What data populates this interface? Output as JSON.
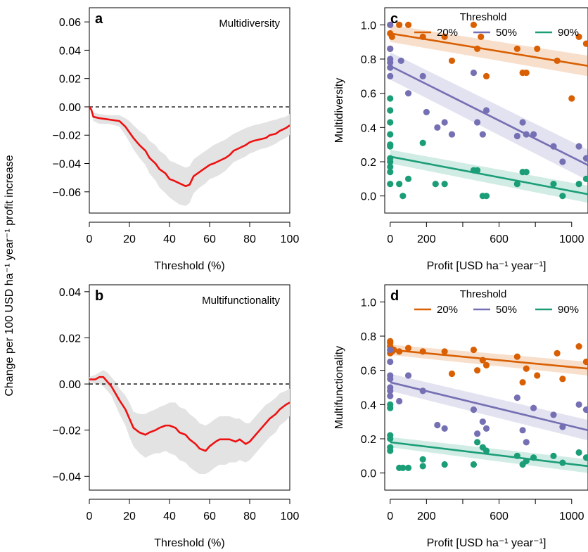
{
  "figure": {
    "shared_ylabel_left": "Change per 100 USD ha⁻¹ year⁻¹ profit increase"
  },
  "colors": {
    "line_red": "#ee1111",
    "band_gray": "#e3e3e3",
    "orange": "#d95f02",
    "purple": "#7570b3",
    "green": "#1b9e77"
  },
  "chart_data": [
    {
      "panel": "a",
      "type": "line",
      "title": "Multidiversity",
      "xlabel": "Threshold (%)",
      "ylabel": "",
      "xlim": [
        0,
        100
      ],
      "ylim": [
        -0.075,
        0.07
      ],
      "xticks": [
        0,
        20,
        40,
        60,
        80,
        100
      ],
      "yticks": [
        -0.06,
        -0.04,
        -0.02,
        0.0,
        0.02,
        0.04,
        0.06
      ],
      "ytick_labels": [
        "−0.06",
        "−0.04",
        "−0.02",
        "0.00",
        "0.02",
        "0.04",
        "0.06"
      ],
      "reference_line": 0,
      "series": [
        {
          "x": [
            0,
            1,
            2,
            5,
            10,
            15,
            18,
            20,
            22,
            25,
            28,
            30,
            33,
            35,
            38,
            40,
            42,
            45,
            48,
            50,
            52,
            55,
            58,
            60,
            62,
            65,
            68,
            70,
            72,
            75,
            78,
            80,
            82,
            85,
            88,
            90,
            93,
            95,
            98,
            100
          ],
          "y": [
            0.0,
            -0.002,
            -0.007,
            -0.008,
            -0.009,
            -0.01,
            -0.014,
            -0.018,
            -0.022,
            -0.027,
            -0.031,
            -0.036,
            -0.04,
            -0.044,
            -0.047,
            -0.051,
            -0.052,
            -0.054,
            -0.056,
            -0.055,
            -0.049,
            -0.046,
            -0.043,
            -0.041,
            -0.04,
            -0.038,
            -0.036,
            -0.034,
            -0.031,
            -0.029,
            -0.027,
            -0.025,
            -0.024,
            -0.023,
            -0.022,
            -0.02,
            -0.019,
            -0.017,
            -0.015,
            -0.013
          ],
          "lower": [
            0.0,
            -0.003,
            -0.01,
            -0.012,
            -0.012,
            -0.014,
            -0.02,
            -0.025,
            -0.03,
            -0.036,
            -0.041,
            -0.047,
            -0.052,
            -0.057,
            -0.061,
            -0.064,
            -0.066,
            -0.069,
            -0.07,
            -0.068,
            -0.061,
            -0.057,
            -0.054,
            -0.051,
            -0.05,
            -0.048,
            -0.045,
            -0.042,
            -0.039,
            -0.037,
            -0.035,
            -0.033,
            -0.032,
            -0.03,
            -0.029,
            -0.028,
            -0.026,
            -0.024,
            -0.022,
            -0.02
          ],
          "upper": [
            0.0,
            -0.001,
            -0.004,
            -0.005,
            -0.006,
            -0.006,
            -0.008,
            -0.01,
            -0.013,
            -0.017,
            -0.02,
            -0.024,
            -0.027,
            -0.031,
            -0.034,
            -0.038,
            -0.039,
            -0.041,
            -0.043,
            -0.042,
            -0.037,
            -0.034,
            -0.031,
            -0.029,
            -0.027,
            -0.025,
            -0.023,
            -0.021,
            -0.019,
            -0.017,
            -0.015,
            -0.014,
            -0.013,
            -0.012,
            -0.011,
            -0.01,
            -0.009,
            -0.008,
            -0.007,
            -0.005
          ]
        }
      ]
    },
    {
      "panel": "b",
      "type": "line",
      "title": "Multifunctionality",
      "xlabel": "Threshold (%)",
      "ylabel": "",
      "xlim": [
        0,
        100
      ],
      "ylim": [
        -0.046,
        0.043
      ],
      "xticks": [
        0,
        20,
        40,
        60,
        80,
        100
      ],
      "yticks": [
        -0.04,
        -0.02,
        0.0,
        0.02,
        0.04
      ],
      "ytick_labels": [
        "−0.04",
        "−0.02",
        "0.00",
        "0.02",
        "0.04"
      ],
      "reference_line": 0,
      "series": [
        {
          "x": [
            0,
            3,
            5,
            7,
            9,
            11,
            13,
            15,
            18,
            20,
            22,
            25,
            28,
            30,
            33,
            35,
            38,
            40,
            43,
            45,
            48,
            50,
            53,
            55,
            58,
            60,
            63,
            65,
            68,
            70,
            73,
            75,
            78,
            80,
            83,
            85,
            88,
            90,
            93,
            95,
            98,
            100
          ],
          "y": [
            0.002,
            0.002,
            0.003,
            0.003,
            0.001,
            -0.001,
            -0.004,
            -0.007,
            -0.011,
            -0.015,
            -0.019,
            -0.021,
            -0.022,
            -0.021,
            -0.02,
            -0.019,
            -0.018,
            -0.018,
            -0.019,
            -0.021,
            -0.022,
            -0.024,
            -0.026,
            -0.028,
            -0.029,
            -0.027,
            -0.025,
            -0.024,
            -0.024,
            -0.024,
            -0.025,
            -0.024,
            -0.026,
            -0.025,
            -0.022,
            -0.02,
            -0.017,
            -0.015,
            -0.013,
            -0.011,
            -0.009,
            -0.008
          ],
          "lower": [
            0.001,
            0.0,
            0.0,
            -0.001,
            -0.003,
            -0.005,
            -0.009,
            -0.013,
            -0.018,
            -0.023,
            -0.027,
            -0.03,
            -0.032,
            -0.031,
            -0.03,
            -0.03,
            -0.029,
            -0.03,
            -0.031,
            -0.033,
            -0.034,
            -0.036,
            -0.038,
            -0.039,
            -0.039,
            -0.038,
            -0.036,
            -0.035,
            -0.035,
            -0.034,
            -0.034,
            -0.033,
            -0.034,
            -0.033,
            -0.03,
            -0.028,
            -0.025,
            -0.023,
            -0.021,
            -0.018,
            -0.016,
            -0.014
          ],
          "upper": [
            0.003,
            0.004,
            0.005,
            0.006,
            0.005,
            0.003,
            0.001,
            -0.002,
            -0.005,
            -0.008,
            -0.012,
            -0.013,
            -0.013,
            -0.012,
            -0.011,
            -0.01,
            -0.009,
            -0.008,
            -0.008,
            -0.01,
            -0.011,
            -0.013,
            -0.015,
            -0.017,
            -0.018,
            -0.017,
            -0.015,
            -0.014,
            -0.014,
            -0.014,
            -0.015,
            -0.015,
            -0.017,
            -0.017,
            -0.014,
            -0.012,
            -0.009,
            -0.008,
            -0.006,
            -0.004,
            -0.003,
            -0.002
          ]
        }
      ]
    },
    {
      "panel": "c",
      "type": "scatter",
      "title": "",
      "xlabel": "Profit [USD ha⁻¹ year⁻¹]",
      "ylabel": "Multidiversity",
      "xlim": [
        -30,
        1090
      ],
      "ylim": [
        -0.1,
        1.1
      ],
      "xticks": [
        0,
        200,
        400,
        600,
        800,
        1000
      ],
      "xtick_labels": [
        "0",
        "200",
        "",
        "600",
        "",
        "1000"
      ],
      "yticks": [
        0.0,
        0.2,
        0.4,
        0.6,
        0.8,
        1.0
      ],
      "ytick_labels": [
        "0.0",
        "0.2",
        "0.4",
        "0.6",
        "0.8",
        "1.0"
      ],
      "legend_title": "Threshold",
      "series": [
        {
          "name": "20%",
          "color": "#d95f02",
          "x": [
            0,
            0,
            0,
            10,
            50,
            100,
            180,
            300,
            340,
            460,
            480,
            500,
            530,
            700,
            730,
            750,
            810,
            920,
            1000,
            1040,
            1080
          ],
          "y": [
            1.0,
            0.95,
            0.86,
            0.93,
            1.0,
            1.0,
            0.93,
            0.93,
            0.79,
            1.0,
            0.86,
            0.93,
            0.7,
            0.86,
            0.72,
            0.72,
            0.86,
            0.79,
            0.57,
            0.93,
            0.89
          ],
          "fit": [
            0.95,
            0.76
          ],
          "ci_width": [
            0.05,
            0.06
          ]
        },
        {
          "name": "50%",
          "color": "#7570b3",
          "x": [
            0,
            0,
            0,
            0,
            0,
            0,
            60,
            100,
            180,
            200,
            260,
            300,
            340,
            460,
            480,
            510,
            530,
            700,
            730,
            750,
            790,
            900,
            950,
            1040,
            1080
          ],
          "y": [
            1.0,
            0.86,
            0.78,
            0.75,
            0.7,
            0.8,
            0.79,
            0.6,
            0.7,
            0.49,
            0.4,
            0.43,
            0.36,
            0.72,
            0.43,
            0.36,
            0.5,
            0.35,
            0.43,
            0.36,
            0.36,
            0.29,
            0.2,
            0.29,
            0.22
          ],
          "fit": [
            0.76,
            0.18
          ],
          "ci_width": [
            0.08,
            0.09
          ]
        },
        {
          "name": "90%",
          "color": "#1b9e77",
          "x": [
            0,
            0,
            0,
            0,
            0,
            0,
            0,
            0,
            0,
            0,
            0,
            50,
            70,
            100,
            180,
            250,
            300,
            460,
            480,
            510,
            530,
            700,
            730,
            750,
            900,
            950,
            1040,
            1080
          ],
          "y": [
            0.57,
            0.5,
            0.43,
            0.36,
            0.3,
            0.22,
            0.29,
            0.14,
            0.07,
            0.17,
            0.2,
            0.07,
            0.0,
            0.1,
            0.31,
            0.07,
            0.07,
            0.15,
            0.15,
            0.0,
            0.0,
            0.07,
            0.14,
            0.14,
            0.07,
            0.0,
            0.07,
            0.1
          ],
          "fit": [
            0.23,
            0.01
          ],
          "ci_width": [
            0.04,
            0.05
          ]
        }
      ]
    },
    {
      "panel": "d",
      "type": "scatter",
      "title": "",
      "xlabel": "Profit [USD ha⁻¹ year⁻¹]",
      "ylabel": "Multifunctionality",
      "xlim": [
        -30,
        1090
      ],
      "ylim": [
        -0.1,
        1.1
      ],
      "xticks": [
        0,
        200,
        400,
        600,
        800,
        1000
      ],
      "xtick_labels": [
        "0",
        "200",
        "",
        "600",
        "",
        "1000"
      ],
      "yticks": [
        0.0,
        0.2,
        0.4,
        0.6,
        0.8,
        1.0
      ],
      "ytick_labels": [
        "0.0",
        "0.2",
        "0.4",
        "0.6",
        "0.8",
        "1.0"
      ],
      "legend_title": "Threshold",
      "series": [
        {
          "name": "20%",
          "color": "#d95f02",
          "x": [
            0,
            0,
            0,
            0,
            0,
            10,
            20,
            50,
            100,
            180,
            300,
            340,
            460,
            480,
            510,
            530,
            700,
            730,
            750,
            810,
            920,
            950,
            1040,
            1080
          ],
          "y": [
            0.77,
            0.76,
            0.72,
            0.7,
            0.74,
            0.71,
            0.72,
            0.71,
            0.73,
            0.71,
            0.71,
            0.58,
            0.72,
            0.6,
            0.66,
            0.63,
            0.68,
            0.53,
            0.61,
            0.57,
            0.7,
            0.55,
            0.74,
            0.65
          ],
          "fit": [
            0.72,
            0.61
          ],
          "ci_width": [
            0.03,
            0.04
          ]
        },
        {
          "name": "50%",
          "color": "#7570b3",
          "x": [
            0,
            0,
            0,
            0,
            0,
            0,
            0,
            50,
            100,
            180,
            260,
            300,
            460,
            480,
            510,
            530,
            700,
            730,
            750,
            790,
            900,
            950,
            1040,
            1080
          ],
          "y": [
            0.72,
            0.65,
            0.57,
            0.55,
            0.5,
            0.45,
            0.48,
            0.42,
            0.57,
            0.48,
            0.28,
            0.26,
            0.37,
            0.23,
            0.3,
            0.26,
            0.44,
            0.25,
            0.18,
            0.38,
            0.34,
            0.27,
            0.4,
            0.37
          ],
          "fit": [
            0.53,
            0.25
          ],
          "ci_width": [
            0.05,
            0.06
          ]
        },
        {
          "name": "90%",
          "color": "#1b9e77",
          "x": [
            0,
            0,
            0,
            0,
            0,
            0,
            50,
            70,
            100,
            180,
            180,
            300,
            460,
            480,
            510,
            530,
            700,
            730,
            750,
            790,
            900,
            950,
            1040,
            1080
          ],
          "y": [
            0.38,
            0.22,
            0.2,
            0.15,
            0.13,
            0.4,
            0.03,
            0.03,
            0.03,
            0.08,
            0.04,
            0.05,
            0.05,
            0.18,
            0.15,
            0.13,
            0.1,
            0.05,
            0.07,
            0.09,
            0.1,
            0.06,
            0.12,
            0.09
          ],
          "fit": [
            0.18,
            0.04
          ],
          "ci_width": [
            0.03,
            0.04
          ]
        }
      ]
    }
  ]
}
